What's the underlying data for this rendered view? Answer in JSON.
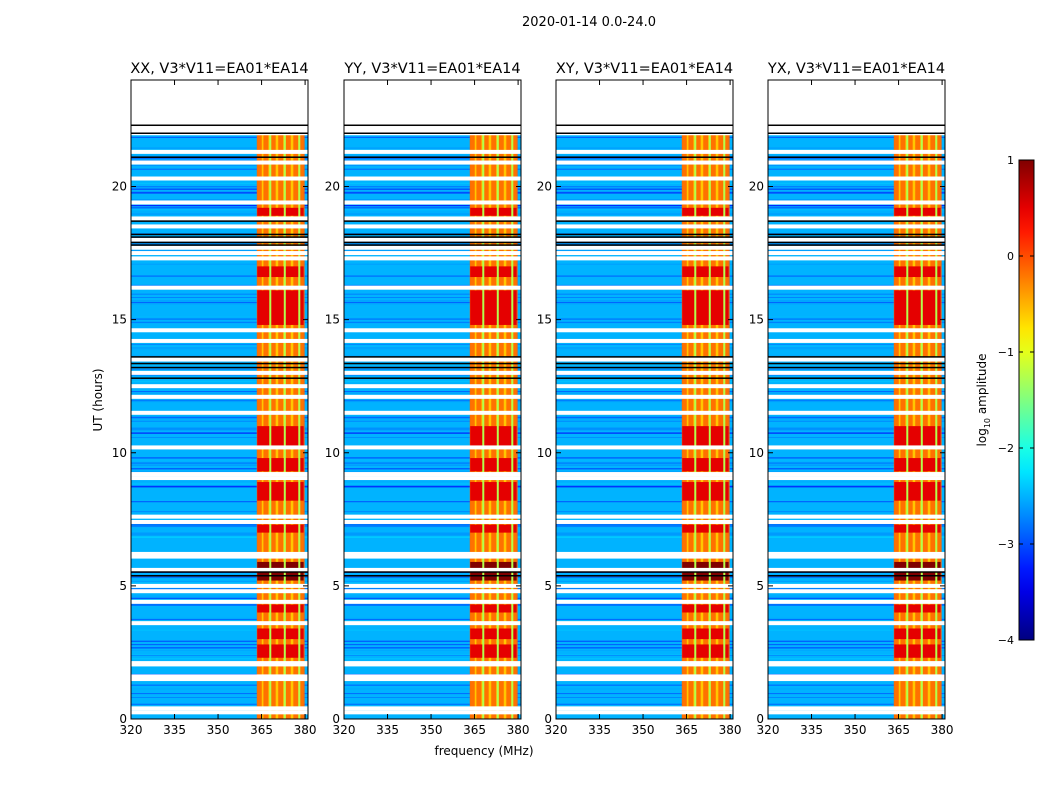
{
  "figure_title": "2020-01-14 0.0-24.0",
  "colors": {
    "flag": "#ffffff",
    "frame": "#000000",
    "background_jet_level": 0.3
  },
  "chart_data": {
    "type": "heatmap",
    "title": "2020-01-14 0.0-24.0",
    "xlabel": "frequency (MHz)",
    "ylabel": "UT (hours)",
    "x_range": [
      320,
      381
    ],
    "y_range": [
      0,
      24
    ],
    "x_ticks": [
      "320",
      "335",
      "350",
      "365",
      "380"
    ],
    "x_tick_values": [
      320,
      335,
      350,
      365,
      380
    ],
    "y_ticks": [
      "0",
      "5",
      "10",
      "15",
      "20"
    ],
    "y_tick_values": [
      0,
      5,
      10,
      15,
      20
    ],
    "colorbar": {
      "label_prefix": "log",
      "label_sub": "10",
      "label_suffix": " amplitude",
      "range": [
        -4,
        1
      ],
      "ticks": [
        "−4",
        "−3",
        "−2",
        "−1",
        "0",
        "1"
      ],
      "tick_values": [
        -4,
        -3,
        -2,
        -1,
        0,
        1
      ],
      "colormap": "jet"
    },
    "panels": [
      {
        "title": "XX, V3*V11=EA01*EA14"
      },
      {
        "title": "YY, V3*V11=EA01*EA14"
      },
      {
        "title": "XY, V3*V11=EA01*EA14"
      },
      {
        "title": "YX, V3*V11=EA01*EA14"
      }
    ],
    "rfi_band_mhz": [
      363.5,
      379.5
    ],
    "rfi_channel_mhz": [
      364.2,
      366.5,
      369.0,
      371.6,
      374.2,
      376.8,
      379.0
    ],
    "rfi_gap_mhz": [
      368.0,
      373.0,
      378.0
    ],
    "no_data_above_hours": 22.0,
    "strong_rfi_hours": [
      [
        2.3,
        2.8
      ],
      [
        3.0,
        3.4
      ],
      [
        4.0,
        4.3
      ],
      [
        5.2,
        5.9
      ],
      [
        7.0,
        7.3
      ],
      [
        8.2,
        8.9
      ],
      [
        9.3,
        9.8
      ],
      [
        10.2,
        11.0
      ],
      [
        14.8,
        16.1
      ],
      [
        16.6,
        17.0
      ],
      [
        18.9,
        19.2
      ]
    ],
    "flagged_hours": [
      0.25,
      0.4,
      1.5,
      1.6,
      2.05,
      2.1,
      3.6,
      4.4,
      4.8,
      5.0,
      5.6,
      6.1,
      6.2,
      7.4,
      7.6,
      9.05,
      9.2,
      10.2,
      11.5,
      12.1,
      12.5,
      13.0,
      13.5,
      14.2,
      14.6,
      16.2,
      17.3,
      17.5,
      17.7,
      18.0,
      18.5,
      18.8,
      19.4,
      20.3,
      20.9,
      21.3,
      22.0
    ],
    "line_flag_hours": [
      5.38,
      5.52,
      12.8,
      13.2,
      13.35,
      13.6,
      17.8,
      17.9,
      18.1,
      18.2,
      18.7,
      21.1,
      22.0,
      22.3
    ]
  }
}
